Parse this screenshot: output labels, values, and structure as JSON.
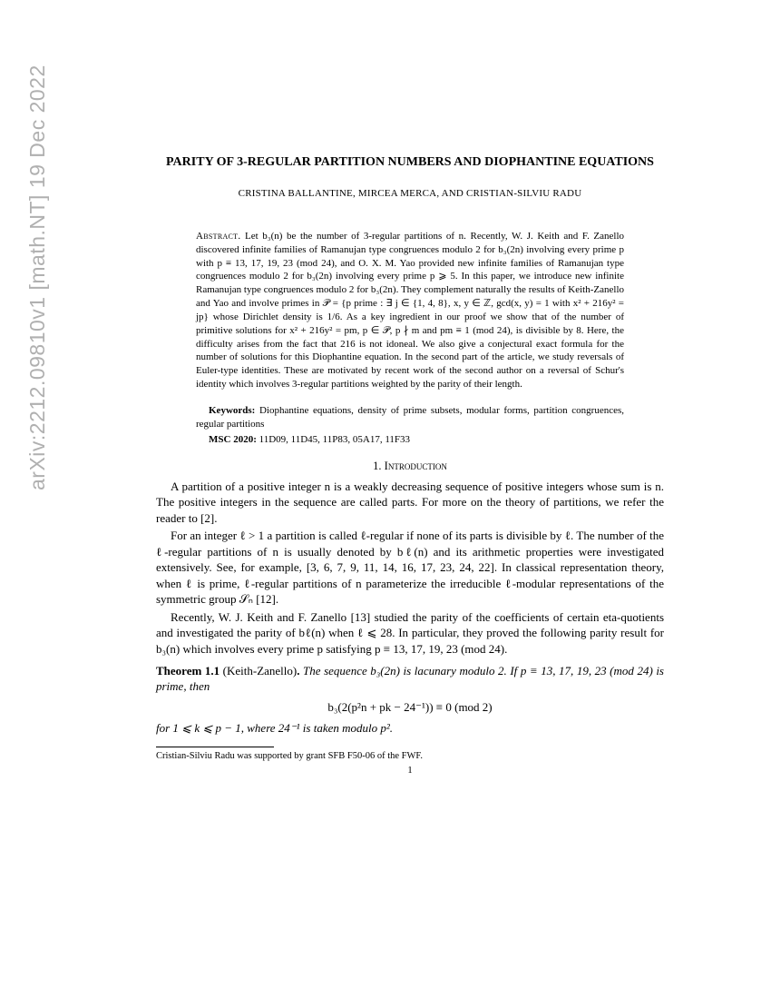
{
  "arxiv": "arXiv:2212.09810v1  [math.NT]  19 Dec 2022",
  "title": "PARITY OF 3-REGULAR PARTITION NUMBERS AND DIOPHANTINE EQUATIONS",
  "authors": "CRISTINA BALLANTINE, MIRCEA MERCA, AND CRISTIAN-SILVIU RADU",
  "abstract_label": "Abstract.",
  "abstract": " Let b₃(n) be the number of 3-regular partitions of n. Recently, W. J. Keith and F. Zanello discovered infinite families of Ramanujan type congruences modulo 2 for b₃(2n) involving every prime p with p ≡ 13, 17, 19, 23 (mod 24), and O. X. M. Yao provided new infinite families of Ramanujan type congruences modulo 2 for b₃(2n) involving every prime p ⩾ 5. In this paper, we introduce new infinite Ramanujan type congruences modulo 2 for b₃(2n). They complement naturally the results of Keith-Zanello and Yao and involve primes in 𝒫 = {p prime  : ∃ j ∈ {1, 4, 8}, x, y ∈ ℤ, gcd(x, y) = 1 with x² + 216y² = jp} whose Dirichlet density is 1/6. As a key ingredient in our proof we show that of the number of primitive solutions for x² + 216y² = pm, p ∈ 𝒫, p ∤ m and pm ≡ 1 (mod 24), is divisible by 8. Here, the difficulty arises from the fact that 216 is not idoneal. We also give a conjectural exact formula for the number of solutions for this Diophantine equation. In the second part of the article, we study reversals of Euler-type identities. These are motivated by recent work of the second author on a reversal of Schur's identity which involves 3-regular partitions weighted by the parity of their length.",
  "keywords_label": "Keywords:",
  "keywords": " Diophantine equations, density of prime subsets, modular forms, partition congruences, regular partitions",
  "msc_label": "MSC 2020:",
  "msc": " 11D09, 11D45, 11P83, 05A17, 11F33",
  "section1": "1. Introduction",
  "p1": "A partition of a positive integer n is a weakly decreasing sequence of positive integers whose sum is n. The positive integers in the sequence are called parts. For more on the theory of partitions, we refer the reader to [2].",
  "p2": "For an integer ℓ > 1 a partition is called ℓ-regular if none of its parts is divisible by ℓ. The number of the ℓ-regular partitions of n is usually denoted by bℓ(n) and its arithmetic properties were investigated extensively. See, for example, [3, 6, 7, 9, 11, 14, 16, 17, 23, 24, 22]. In classical representation theory, when ℓ is prime, ℓ-regular partitions of n parameterize the irreducible ℓ-modular representations of the symmetric group 𝒮ₙ [12].",
  "p3": "Recently, W. J. Keith and F. Zanello [13] studied the parity of the coefficients of certain eta-quotients and investigated the parity of bℓ(n) when ℓ ⩽ 28. In particular, they proved the following parity result for b₃(n) which involves every prime p satisfying p ≡ 13, 17, 19, 23 (mod 24).",
  "theorem_num": "Theorem 1.1",
  "theorem_credit": " (Keith-Zanello)",
  "theorem_body1": "The sequence b₃(2n) is lacunary modulo 2. If p ≡ 13, 17, 19, 23 (mod 24) is prime, then",
  "theorem_eqn": "b₃(2(p²n + pk − 24⁻¹)) ≡ 0   (mod 2)",
  "theorem_body2": "for 1 ⩽ k ⩽ p − 1, where 24⁻¹ is taken modulo p².",
  "footnote": "Cristian-Silviu Radu was supported by grant SFB F50-06 of the FWF.",
  "pagenum": "1"
}
